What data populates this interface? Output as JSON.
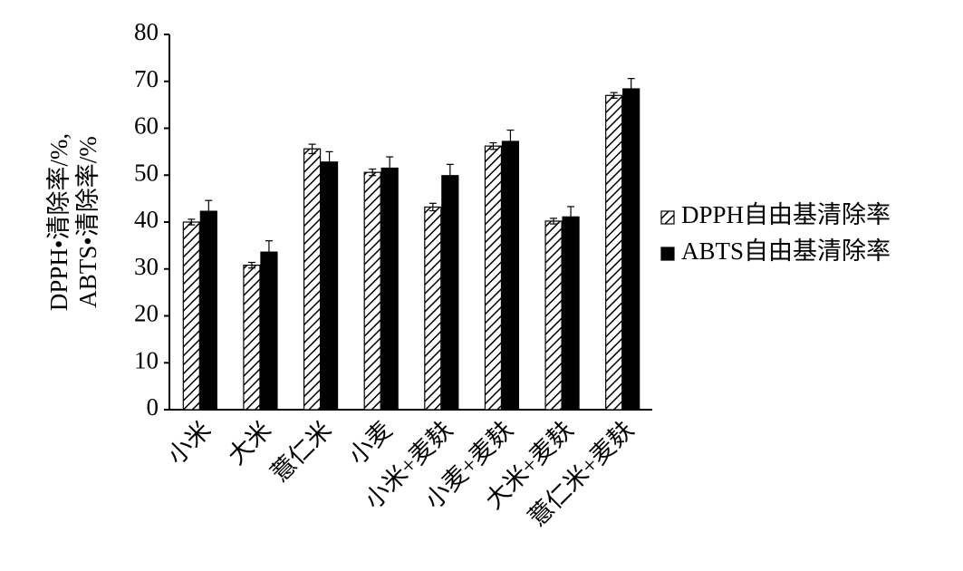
{
  "chart_data": {
    "type": "bar",
    "ylabel": [
      "DPPH•清除率/%,",
      "ABTS•清除率/%"
    ],
    "categories": [
      "小米",
      "大米",
      "薏仁米",
      "小麦",
      "小米+麦麸",
      "小麦+麦麸",
      "大米+麦麸",
      "薏仁米+麦麸"
    ],
    "series": [
      {
        "name": "DPPH自由基清除率",
        "color": "#000000",
        "pattern": "hatch",
        "values": [
          40.0,
          30.8,
          55.6,
          50.6,
          43.2,
          56.2,
          40.2,
          67.0
        ],
        "errors": [
          0.6,
          0.6,
          1.0,
          0.7,
          0.8,
          0.7,
          0.6,
          0.6
        ]
      },
      {
        "name": "ABTS自由基清除率",
        "color": "#000000",
        "values": [
          42.3,
          33.6,
          52.8,
          51.5,
          49.9,
          57.2,
          41.1,
          68.4
        ],
        "errors": [
          2.3,
          2.4,
          2.2,
          2.4,
          2.4,
          2.4,
          2.2,
          2.2
        ]
      }
    ],
    "ylim": [
      0,
      80
    ],
    "yticks": [
      0,
      10,
      20,
      30,
      40,
      50,
      60,
      70,
      80
    ],
    "legend": "right"
  }
}
